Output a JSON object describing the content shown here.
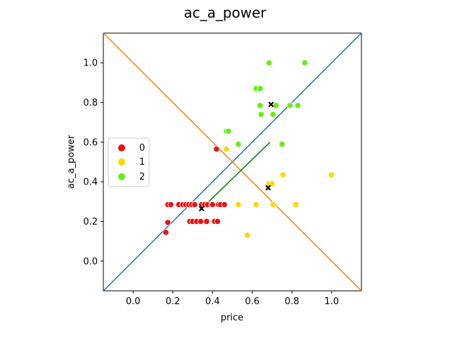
{
  "chart_data": {
    "type": "scatter",
    "title": "ac_a_power",
    "xlabel": "price",
    "ylabel": "ac_a_power",
    "xlim": [
      -0.15,
      1.15
    ],
    "ylim": [
      -0.15,
      1.15
    ],
    "xticks": [
      "0.0",
      "0.2",
      "0.4",
      "0.6",
      "0.8",
      "1.0"
    ],
    "yticks": [
      "0.0",
      "0.2",
      "0.4",
      "0.6",
      "0.8",
      "1.0"
    ],
    "grid": false,
    "legend": {
      "placement": "center-left",
      "entries": [
        "0",
        "1",
        "2"
      ]
    },
    "series": [
      {
        "name": "0",
        "color": "#ee1111",
        "points": [
          [
            0.165,
            0.145
          ],
          [
            0.175,
            0.195
          ],
          [
            0.175,
            0.285
          ],
          [
            0.19,
            0.285
          ],
          [
            0.23,
            0.285
          ],
          [
            0.25,
            0.285
          ],
          [
            0.265,
            0.285
          ],
          [
            0.28,
            0.285
          ],
          [
            0.295,
            0.285
          ],
          [
            0.31,
            0.285
          ],
          [
            0.345,
            0.285
          ],
          [
            0.36,
            0.285
          ],
          [
            0.375,
            0.285
          ],
          [
            0.395,
            0.285
          ],
          [
            0.4,
            0.285
          ],
          [
            0.43,
            0.285
          ],
          [
            0.44,
            0.285
          ],
          [
            0.46,
            0.285
          ],
          [
            0.285,
            0.2
          ],
          [
            0.3,
            0.2
          ],
          [
            0.32,
            0.2
          ],
          [
            0.34,
            0.2
          ],
          [
            0.37,
            0.2
          ],
          [
            0.41,
            0.2
          ],
          [
            0.425,
            0.2
          ],
          [
            0.42,
            0.565
          ]
        ]
      },
      {
        "name": "1",
        "color": "#ffd700",
        "points": [
          [
            0.47,
            0.565
          ],
          [
            0.53,
            0.285
          ],
          [
            0.575,
            0.13
          ],
          [
            0.62,
            0.285
          ],
          [
            0.685,
            0.39
          ],
          [
            0.7,
            0.39
          ],
          [
            0.705,
            0.285
          ],
          [
            0.755,
            0.435
          ],
          [
            0.82,
            0.285
          ],
          [
            1.0,
            0.435
          ]
        ]
      },
      {
        "name": "2",
        "color": "#66ee11",
        "points": [
          [
            0.47,
            0.655
          ],
          [
            0.48,
            0.655
          ],
          [
            0.53,
            0.59
          ],
          [
            0.62,
            0.87
          ],
          [
            0.64,
            0.87
          ],
          [
            0.64,
            0.785
          ],
          [
            0.645,
            0.74
          ],
          [
            0.685,
            1.0
          ],
          [
            0.705,
            0.74
          ],
          [
            0.72,
            0.785
          ],
          [
            0.75,
            0.59
          ],
          [
            0.79,
            0.785
          ],
          [
            0.83,
            0.785
          ],
          [
            0.865,
            1.0
          ]
        ]
      }
    ],
    "centroids": [
      [
        0.345,
        0.265
      ],
      [
        0.68,
        0.37
      ],
      [
        0.695,
        0.79
      ]
    ],
    "lines": [
      {
        "color": "#1f77b4",
        "from": [
          -0.15,
          -0.15
        ],
        "to": [
          1.15,
          1.15
        ]
      },
      {
        "color": "#ff7f0e",
        "from": [
          -0.15,
          1.15
        ],
        "to": [
          1.15,
          -0.15
        ]
      },
      {
        "color": "#008000",
        "from": [
          0.345,
          0.265
        ],
        "to": [
          0.69,
          0.6
        ]
      }
    ]
  }
}
